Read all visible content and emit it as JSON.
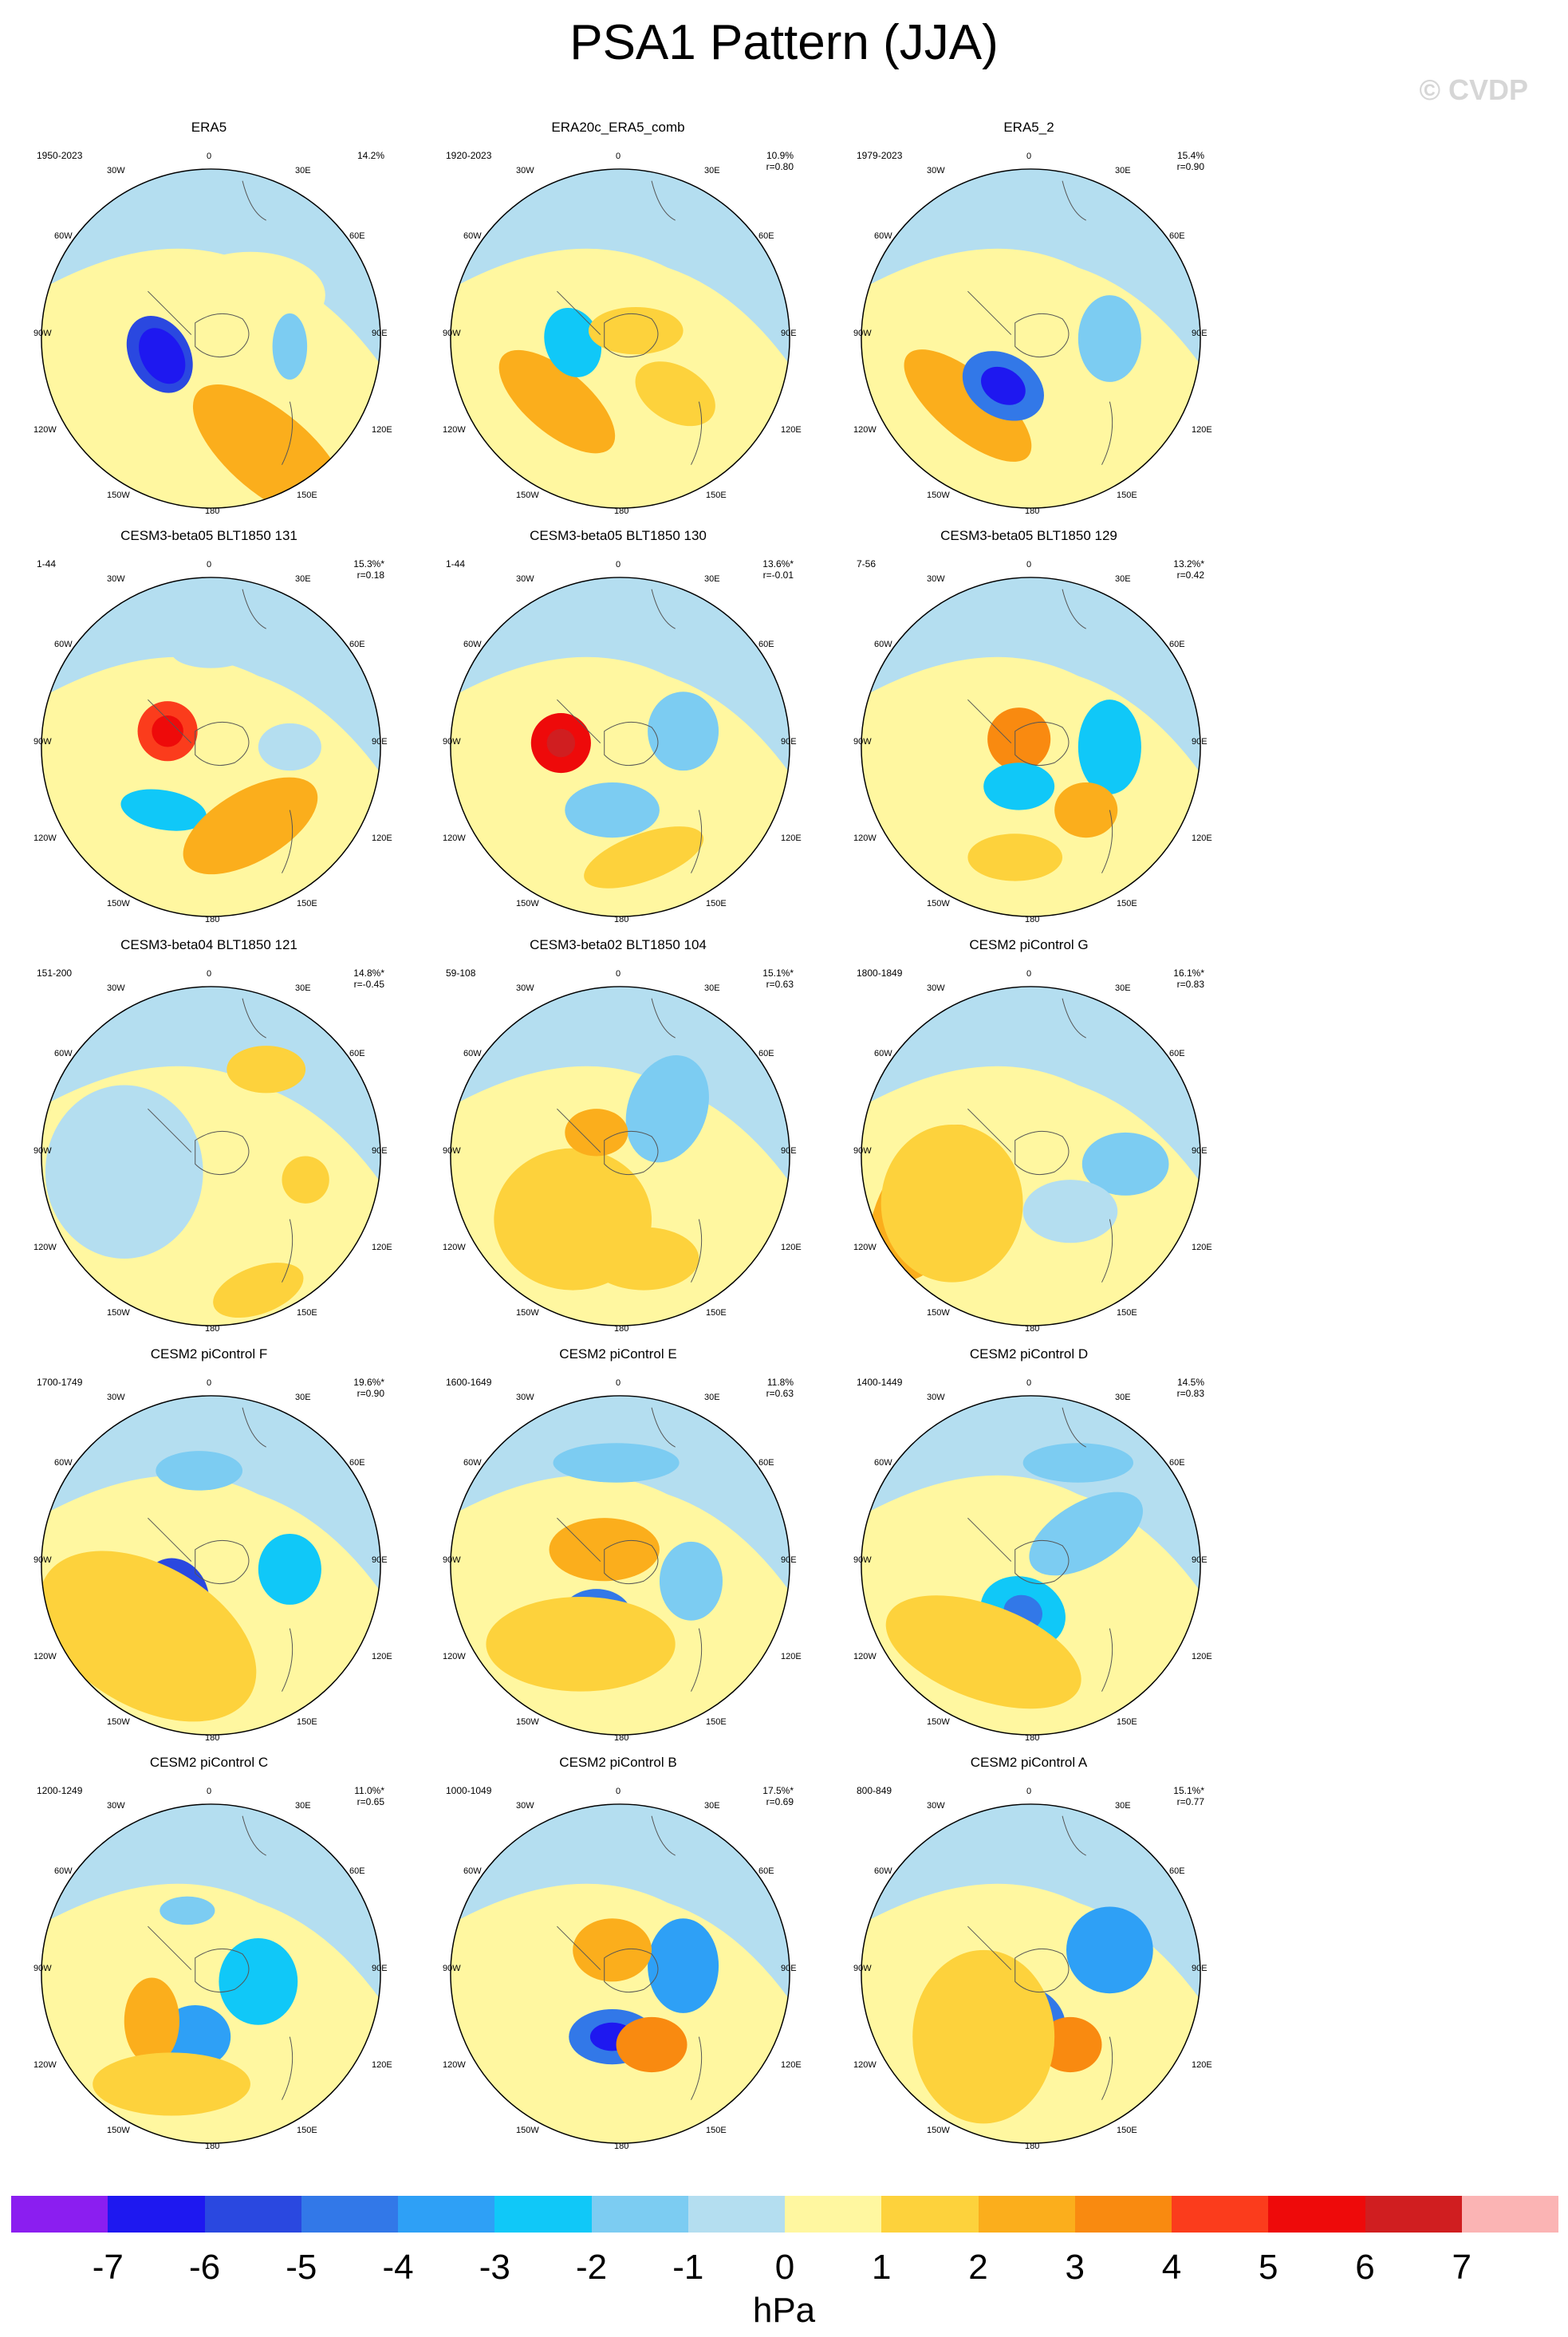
{
  "title": "PSA1 Pattern (JJA)",
  "watermark": "© CVDP",
  "colorbar": {
    "units": "hPa",
    "labels": [
      "-7",
      "-6",
      "-5",
      "-4",
      "-3",
      "-2",
      "-1",
      "0",
      "1",
      "2",
      "3",
      "4",
      "5",
      "6",
      "7"
    ],
    "colors": [
      "#8b1ef0",
      "#1e18f0",
      "#2a48e0",
      "#3278e8",
      "#2ea0f6",
      "#10c8f8",
      "#7cccf2",
      "#b4def0",
      "#fff7a0",
      "#fdd23c",
      "#fbae1c",
      "#f98a10",
      "#fb3c1c",
      "#ee0a0a",
      "#d01e20",
      "#fbb4b4"
    ]
  },
  "map_labels": {
    "top": "0",
    "top_left": "30W",
    "top_right": "30E",
    "upper_left": "60W",
    "upper_right": "60E",
    "left": "90W",
    "right": "90E",
    "lower_left": "120W",
    "lower_right": "120E",
    "bottom_left": "150W",
    "bottom_right": "150E",
    "bottom": "180"
  },
  "panels": [
    {
      "name": "ERA5",
      "period": "1950-2023",
      "pct": "14.2%",
      "r": ""
    },
    {
      "name": "ERA20c_ERA5_comb",
      "period": "1920-2023",
      "pct": "10.9%",
      "r": "r=0.80"
    },
    {
      "name": "ERA5_2",
      "period": "1979-2023",
      "pct": "15.4%",
      "r": "r=0.90"
    },
    {
      "name": "CESM3-beta05 BLT1850 131",
      "period": "1-44",
      "pct": "15.3%*",
      "r": "r=0.18"
    },
    {
      "name": "CESM3-beta05 BLT1850 130",
      "period": "1-44",
      "pct": "13.6%*",
      "r": "r=-0.01"
    },
    {
      "name": "CESM3-beta05 BLT1850 129",
      "period": "7-56",
      "pct": "13.2%*",
      "r": "r=0.42"
    },
    {
      "name": "CESM3-beta04 BLT1850 121",
      "period": "151-200",
      "pct": "14.8%*",
      "r": "r=-0.45"
    },
    {
      "name": "CESM3-beta02 BLT1850 104",
      "period": "59-108",
      "pct": "15.1%*",
      "r": "r=0.63"
    },
    {
      "name": "CESM2 piControl G",
      "period": "1800-1849",
      "pct": "16.1%*",
      "r": "r=0.83"
    },
    {
      "name": "CESM2 piControl F",
      "period": "1700-1749",
      "pct": "19.6%*",
      "r": "r=0.90"
    },
    {
      "name": "CESM2 piControl E",
      "period": "1600-1649",
      "pct": "11.8%",
      "r": "r=0.63"
    },
    {
      "name": "CESM2 piControl D",
      "period": "1400-1449",
      "pct": "14.5%",
      "r": "r=0.83"
    },
    {
      "name": "CESM2 piControl C",
      "period": "1200-1249",
      "pct": "11.0%*",
      "r": "r=0.65"
    },
    {
      "name": "CESM2 piControl B",
      "period": "1000-1049",
      "pct": "17.5%*",
      "r": "r=0.69"
    },
    {
      "name": "CESM2 piControl A",
      "period": "800-849",
      "pct": "15.1%*",
      "r": "r=0.77"
    }
  ]
}
